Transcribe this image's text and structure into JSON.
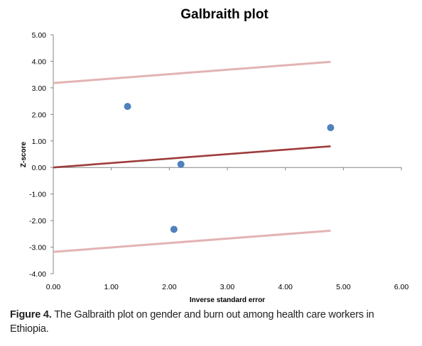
{
  "chart_data": {
    "type": "scatter",
    "title": "Galbraith plot",
    "xlabel": "Inverse standard error",
    "ylabel": "Z-score",
    "xlim": [
      0,
      6
    ],
    "ylim": [
      -4,
      5
    ],
    "xticks": [
      "0.00",
      "1.00",
      "2.00",
      "3.00",
      "4.00",
      "5.00",
      "6.00"
    ],
    "yticks": [
      "-4.00",
      "-3.00",
      "-2.00",
      "-1.00",
      "0.00",
      "1.00",
      "2.00",
      "3.00",
      "4.00",
      "5.00"
    ],
    "points": [
      {
        "x": 1.28,
        "y": 2.3
      },
      {
        "x": 2.2,
        "y": 0.12
      },
      {
        "x": 2.08,
        "y": -2.33
      },
      {
        "x": 4.78,
        "y": 1.5
      }
    ],
    "lines": [
      {
        "role": "regression",
        "x": [
          0,
          4.78
        ],
        "y": [
          0.0,
          0.8
        ],
        "color": "#9e3b3b"
      },
      {
        "role": "upper-bound",
        "x": [
          0,
          4.78
        ],
        "y": [
          3.18,
          3.98
        ],
        "color": "#e3b3b3"
      },
      {
        "role": "lower-bound",
        "x": [
          0,
          4.78
        ],
        "y": [
          -3.18,
          -2.38
        ],
        "color": "#e3b3b3"
      }
    ],
    "marker_color": "#4f81bd",
    "grid": false,
    "legend": "none"
  },
  "caption": {
    "label": "Figure 4.",
    "text": " The Galbraith plot on gender and burn out among health care workers in Ethiopia."
  }
}
